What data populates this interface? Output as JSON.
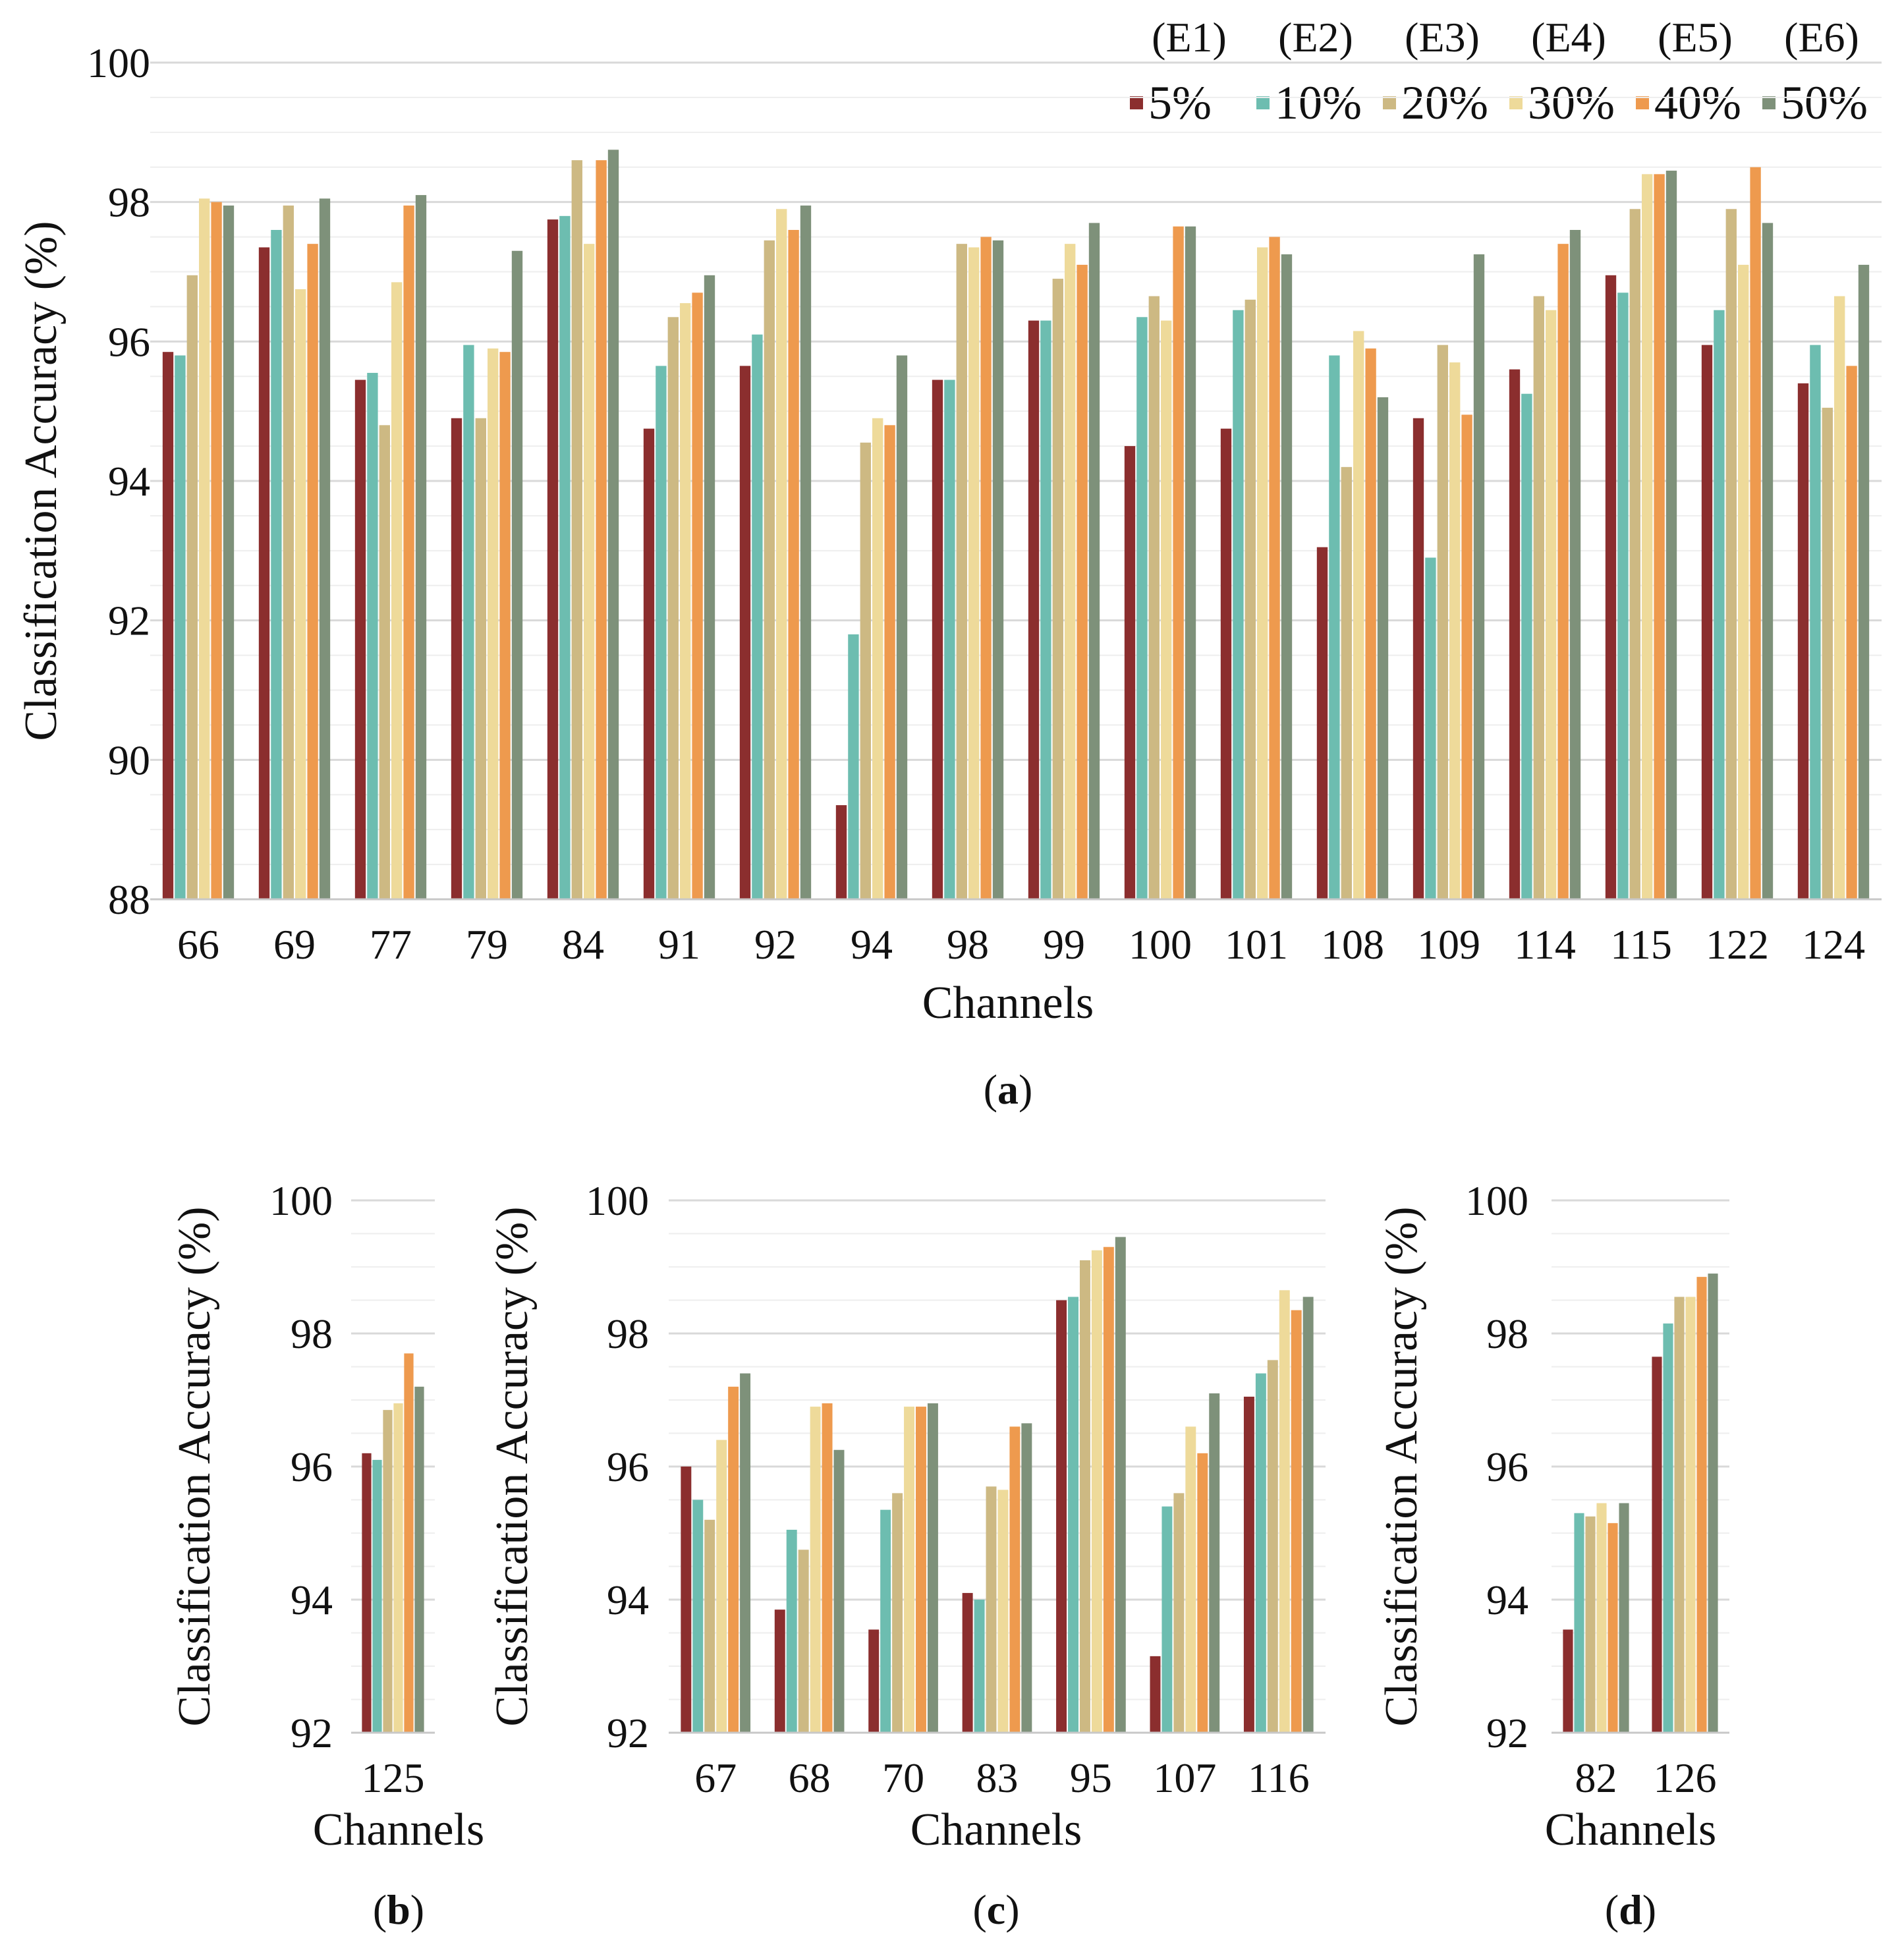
{
  "legend": {
    "experiments": [
      "(E1)",
      "(E2)",
      "(E3)",
      "(E4)",
      "(E5)",
      "(E6)"
    ],
    "labels": [
      "5%",
      "10%",
      "20%",
      "30%",
      "40%",
      "50%"
    ]
  },
  "colors": [
    "#8B2E2E",
    "#6DBDB0",
    "#CDB983",
    "#EEDA9A",
    "#EE9A4E",
    "#7E917A"
  ],
  "chart_data": [
    {
      "panel": "a",
      "label_prefix": "(",
      "label_bold": "a",
      "label_suffix": ")",
      "type": "bar",
      "title": "",
      "xlabel": "Channels",
      "ylabel": "Classification Accuracy (%)",
      "ylim": [
        88,
        100
      ],
      "yticks": [
        "88",
        "90",
        "92",
        "94",
        "96",
        "98",
        "100"
      ],
      "categories": [
        "66",
        "69",
        "77",
        "79",
        "84",
        "91",
        "92",
        "94",
        "98",
        "99",
        "100",
        "101",
        "108",
        "109",
        "114",
        "115",
        "122",
        "124"
      ],
      "series": [
        {
          "name": "5%",
          "values": [
            95.85,
            97.35,
            95.45,
            94.9,
            97.75,
            94.75,
            95.65,
            89.35,
            95.45,
            96.3,
            94.5,
            94.75,
            93.05,
            94.9,
            95.6,
            96.95,
            95.95,
            95.4
          ]
        },
        {
          "name": "10%",
          "values": [
            95.8,
            97.6,
            95.55,
            95.95,
            97.8,
            95.65,
            96.1,
            91.8,
            95.45,
            96.3,
            96.35,
            96.45,
            95.8,
            92.9,
            95.25,
            96.7,
            96.45,
            95.95
          ]
        },
        {
          "name": "20%",
          "values": [
            96.95,
            97.95,
            94.8,
            94.9,
            98.6,
            96.35,
            97.45,
            94.55,
            97.4,
            96.9,
            96.65,
            96.6,
            94.2,
            95.95,
            96.65,
            97.9,
            97.9,
            95.05
          ]
        },
        {
          "name": "30%",
          "values": [
            98.05,
            96.75,
            96.85,
            95.9,
            97.4,
            96.55,
            97.9,
            94.9,
            97.35,
            97.4,
            96.3,
            97.35,
            96.15,
            95.7,
            96.45,
            98.4,
            97.1,
            96.65
          ]
        },
        {
          "name": "40%",
          "values": [
            98.0,
            97.4,
            97.95,
            95.85,
            98.6,
            96.7,
            97.6,
            94.8,
            97.5,
            97.1,
            97.65,
            97.5,
            95.9,
            94.95,
            97.4,
            98.4,
            98.5,
            95.65
          ]
        },
        {
          "name": "50%",
          "values": [
            97.95,
            98.05,
            98.1,
            97.3,
            98.75,
            96.95,
            97.95,
            95.8,
            97.45,
            97.7,
            97.65,
            97.25,
            95.2,
            97.25,
            97.6,
            98.45,
            97.7,
            97.1
          ]
        }
      ]
    },
    {
      "panel": "b",
      "label_prefix": "(",
      "label_bold": "b",
      "label_suffix": ")",
      "type": "bar",
      "title": "",
      "xlabel": "Channels",
      "ylabel": "Classification Accuracy (%)",
      "ylim": [
        92,
        100
      ],
      "yticks": [
        "92",
        "94",
        "96",
        "98",
        "100"
      ],
      "categories": [
        "125"
      ],
      "series": [
        {
          "name": "5%",
          "values": [
            96.2
          ]
        },
        {
          "name": "10%",
          "values": [
            96.1
          ]
        },
        {
          "name": "20%",
          "values": [
            96.85
          ]
        },
        {
          "name": "30%",
          "values": [
            96.95
          ]
        },
        {
          "name": "40%",
          "values": [
            97.7
          ]
        },
        {
          "name": "50%",
          "values": [
            97.2
          ]
        }
      ]
    },
    {
      "panel": "c",
      "label_prefix": "(",
      "label_bold": "c",
      "label_suffix": ")",
      "type": "bar",
      "title": "",
      "xlabel": "Channels",
      "ylabel": "Classification Accuracy (%)",
      "ylim": [
        92,
        100
      ],
      "yticks": [
        "92",
        "94",
        "96",
        "98",
        "100"
      ],
      "categories": [
        "67",
        "68",
        "70",
        "83",
        "95",
        "107",
        "116"
      ],
      "series": [
        {
          "name": "5%",
          "values": [
            96.0,
            93.85,
            93.55,
            94.1,
            98.5,
            93.15,
            97.05
          ]
        },
        {
          "name": "10%",
          "values": [
            95.5,
            95.05,
            95.35,
            94.0,
            98.55,
            95.4,
            97.4
          ]
        },
        {
          "name": "20%",
          "values": [
            95.2,
            94.75,
            95.6,
            95.7,
            99.1,
            95.6,
            97.6
          ]
        },
        {
          "name": "30%",
          "values": [
            96.4,
            96.9,
            96.9,
            95.65,
            99.25,
            96.6,
            98.65
          ]
        },
        {
          "name": "40%",
          "values": [
            97.2,
            96.95,
            96.9,
            96.6,
            99.3,
            96.2,
            98.35
          ]
        },
        {
          "name": "50%",
          "values": [
            97.4,
            96.25,
            96.95,
            96.65,
            99.45,
            97.1,
            98.55
          ]
        }
      ]
    },
    {
      "panel": "d",
      "label_prefix": "(",
      "label_bold": "d",
      "label_suffix": ")",
      "type": "bar",
      "title": "",
      "xlabel": "Channels",
      "ylabel": "Classification Accuracy (%)",
      "ylim": [
        92,
        100
      ],
      "yticks": [
        "92",
        "94",
        "96",
        "98",
        "100"
      ],
      "categories": [
        "82",
        "126"
      ],
      "series": [
        {
          "name": "5%",
          "values": [
            93.55,
            97.65
          ]
        },
        {
          "name": "10%",
          "values": [
            95.3,
            98.15
          ]
        },
        {
          "name": "20%",
          "values": [
            95.25,
            98.55
          ]
        },
        {
          "name": "30%",
          "values": [
            95.45,
            98.55
          ]
        },
        {
          "name": "40%",
          "values": [
            95.15,
            98.85
          ]
        },
        {
          "name": "50%",
          "values": [
            95.45,
            98.9
          ]
        }
      ]
    }
  ]
}
